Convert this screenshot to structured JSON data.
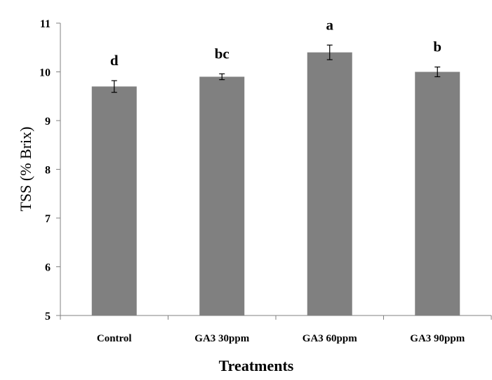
{
  "chart_data": {
    "type": "bar",
    "title": "",
    "xlabel": "Treatments",
    "ylabel": "TSS (% Brix)",
    "categories": [
      "Control",
      "GA3 30ppm",
      "GA3 60ppm",
      "GA3 90ppm"
    ],
    "values": [
      9.7,
      9.9,
      10.4,
      10.0
    ],
    "error": [
      0.12,
      0.06,
      0.15,
      0.1
    ],
    "significance": [
      "d",
      "bc",
      "a",
      "b"
    ],
    "ylim": [
      5,
      11
    ],
    "yticks": [
      5,
      6,
      7,
      8,
      9,
      10,
      11
    ],
    "grid": false,
    "bar_color": "#808080",
    "legend": "none"
  }
}
